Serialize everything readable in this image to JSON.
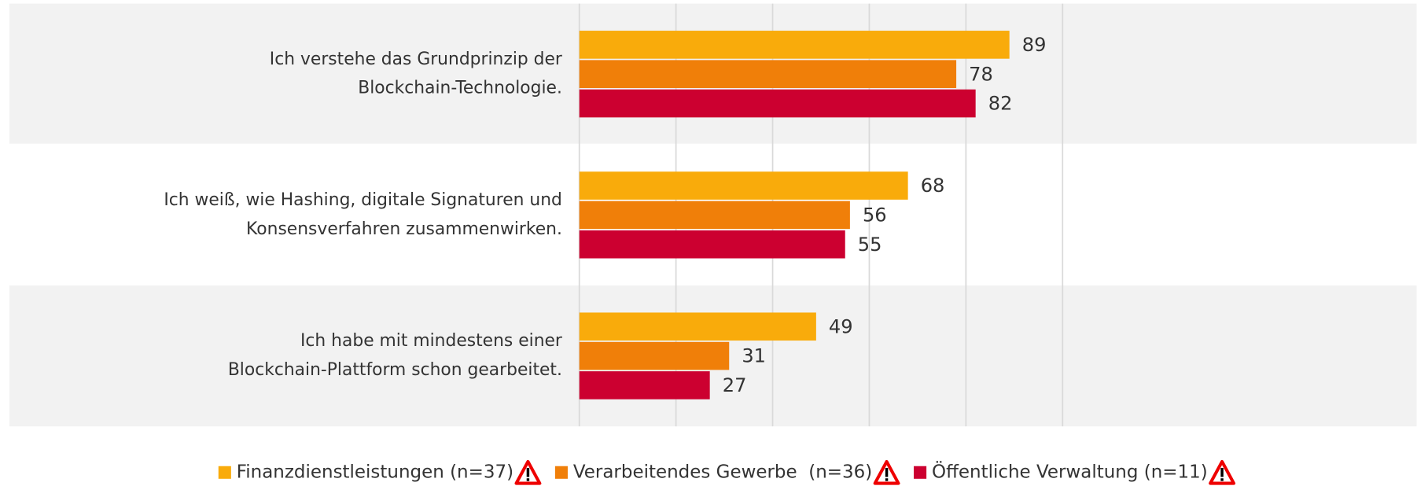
{
  "chart_data": {
    "type": "bar",
    "orientation": "horizontal",
    "categories": [
      "Ich verstehe das Grundprinzip der Blockchain-Technologie.",
      "Ich weiß, wie Hashing, digitale Signaturen und Konsensverfahren zusammenwirken.",
      "Ich habe mit mindestens einer Blockchain-Plattform schon gearbeitet."
    ],
    "series": [
      {
        "name": "Finanzdienstleistungen (n=37)",
        "color": "#f9ab0b",
        "values": [
          89,
          68,
          49
        ]
      },
      {
        "name": "Verarbeitendes Gewerbe  (n=36)",
        "color": "#f07f09",
        "values": [
          78,
          56,
          31
        ]
      },
      {
        "name": "Öffentliche Verwaltung (n=11)",
        "color": "#cc0030",
        "values": [
          82,
          55,
          27
        ]
      }
    ],
    "xlim": [
      0,
      100
    ],
    "xticks": [
      0,
      20,
      40,
      60,
      80,
      100
    ],
    "grid": true,
    "legend": "bottom"
  }
}
